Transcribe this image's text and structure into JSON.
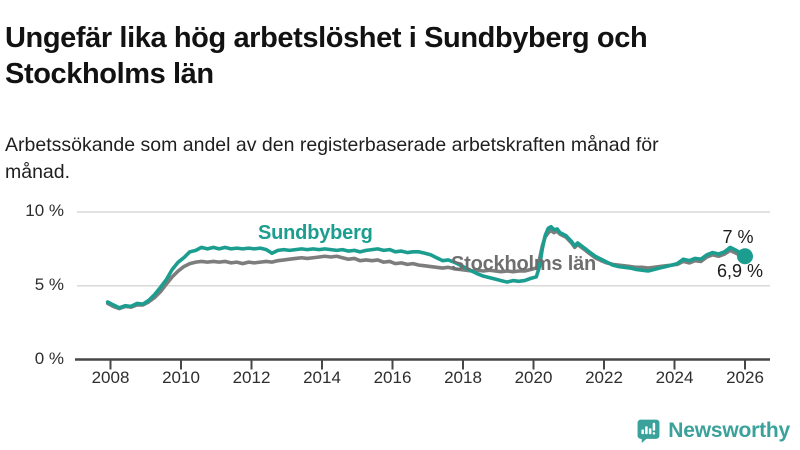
{
  "header": {
    "title": "Ungefär lika hög arbetslöshet i Sundbyberg och Stockholms län",
    "subtitle": "Arbetssökande som andel av den registerbaserade arbetskraften månad för månad."
  },
  "colors": {
    "sundbyberg": "#1b9e8f",
    "stockholm": "#7d7d7d",
    "stockholm_label": "#6e6e6e",
    "gridline": "#d9d9d9",
    "axis": "#474747",
    "logo": "#3aa29b"
  },
  "chart_data": {
    "type": "line",
    "title": "Ungefär lika hög arbetslöshet i Sundbyberg och Stockholms län",
    "unit": "%",
    "x_axis": {
      "ticks": [
        2008,
        2010,
        2012,
        2014,
        2016,
        2018,
        2020,
        2022,
        2024,
        2026
      ],
      "range": [
        2007.9,
        2026.7
      ]
    },
    "y_axis": {
      "ticks": [
        {
          "value": 0,
          "label": "0 %"
        },
        {
          "value": 5,
          "label": "5 %"
        },
        {
          "value": 10,
          "label": "10 %"
        }
      ],
      "range": [
        0,
        10.5
      ]
    },
    "legend_position": "inline-labels",
    "grid": true,
    "series": [
      {
        "name": "Stockholms län",
        "color": "#7d7d7d",
        "end_value_label": "6,9 %",
        "points": [
          [
            2007.92,
            3.8
          ],
          [
            2008.08,
            3.6
          ],
          [
            2008.25,
            3.45
          ],
          [
            2008.42,
            3.6
          ],
          [
            2008.58,
            3.55
          ],
          [
            2008.75,
            3.7
          ],
          [
            2008.92,
            3.7
          ],
          [
            2009.08,
            3.9
          ],
          [
            2009.25,
            4.2
          ],
          [
            2009.42,
            4.6
          ],
          [
            2009.58,
            5.1
          ],
          [
            2009.75,
            5.6
          ],
          [
            2009.92,
            6.0
          ],
          [
            2010.08,
            6.3
          ],
          [
            2010.25,
            6.5
          ],
          [
            2010.42,
            6.6
          ],
          [
            2010.58,
            6.65
          ],
          [
            2010.75,
            6.6
          ],
          [
            2010.92,
            6.65
          ],
          [
            2011.08,
            6.6
          ],
          [
            2011.25,
            6.65
          ],
          [
            2011.42,
            6.55
          ],
          [
            2011.58,
            6.6
          ],
          [
            2011.75,
            6.5
          ],
          [
            2011.92,
            6.6
          ],
          [
            2012.08,
            6.55
          ],
          [
            2012.25,
            6.6
          ],
          [
            2012.42,
            6.65
          ],
          [
            2012.58,
            6.6
          ],
          [
            2012.75,
            6.7
          ],
          [
            2012.92,
            6.75
          ],
          [
            2013.08,
            6.8
          ],
          [
            2013.25,
            6.85
          ],
          [
            2013.42,
            6.9
          ],
          [
            2013.58,
            6.85
          ],
          [
            2013.75,
            6.9
          ],
          [
            2013.92,
            6.95
          ],
          [
            2014.08,
            7.0
          ],
          [
            2014.25,
            6.95
          ],
          [
            2014.42,
            7.0
          ],
          [
            2014.58,
            6.9
          ],
          [
            2014.75,
            6.8
          ],
          [
            2014.92,
            6.85
          ],
          [
            2015.08,
            6.7
          ],
          [
            2015.25,
            6.75
          ],
          [
            2015.42,
            6.7
          ],
          [
            2015.58,
            6.75
          ],
          [
            2015.75,
            6.6
          ],
          [
            2015.92,
            6.65
          ],
          [
            2016.08,
            6.5
          ],
          [
            2016.25,
            6.55
          ],
          [
            2016.42,
            6.45
          ],
          [
            2016.58,
            6.5
          ],
          [
            2016.75,
            6.4
          ],
          [
            2016.92,
            6.35
          ],
          [
            2017.08,
            6.3
          ],
          [
            2017.25,
            6.25
          ],
          [
            2017.42,
            6.2
          ],
          [
            2017.58,
            6.25
          ],
          [
            2017.75,
            6.15
          ],
          [
            2017.92,
            6.1
          ],
          [
            2018.08,
            6.05
          ],
          [
            2018.25,
            6.0
          ],
          [
            2018.42,
            6.05
          ],
          [
            2018.58,
            6.0
          ],
          [
            2018.75,
            6.05
          ],
          [
            2018.92,
            6.0
          ],
          [
            2019.08,
            5.95
          ],
          [
            2019.25,
            6.0
          ],
          [
            2019.42,
            5.95
          ],
          [
            2019.58,
            6.0
          ],
          [
            2019.75,
            6.0
          ],
          [
            2019.92,
            6.1
          ],
          [
            2020.08,
            6.2
          ],
          [
            2020.17,
            6.8
          ],
          [
            2020.25,
            7.7
          ],
          [
            2020.33,
            8.3
          ],
          [
            2020.42,
            8.6
          ],
          [
            2020.5,
            8.75
          ],
          [
            2020.58,
            8.6
          ],
          [
            2020.67,
            8.7
          ],
          [
            2020.75,
            8.5
          ],
          [
            2020.92,
            8.3
          ],
          [
            2021.08,
            7.9
          ],
          [
            2021.17,
            7.6
          ],
          [
            2021.25,
            7.8
          ],
          [
            2021.42,
            7.5
          ],
          [
            2021.58,
            7.2
          ],
          [
            2021.75,
            6.9
          ],
          [
            2021.92,
            6.7
          ],
          [
            2022.08,
            6.55
          ],
          [
            2022.25,
            6.45
          ],
          [
            2022.42,
            6.4
          ],
          [
            2022.58,
            6.35
          ],
          [
            2022.75,
            6.3
          ],
          [
            2022.92,
            6.25
          ],
          [
            2023.08,
            6.25
          ],
          [
            2023.25,
            6.2
          ],
          [
            2023.42,
            6.25
          ],
          [
            2023.58,
            6.3
          ],
          [
            2023.75,
            6.35
          ],
          [
            2023.92,
            6.4
          ],
          [
            2024.08,
            6.45
          ],
          [
            2024.25,
            6.65
          ],
          [
            2024.42,
            6.55
          ],
          [
            2024.58,
            6.7
          ],
          [
            2024.75,
            6.65
          ],
          [
            2024.92,
            6.95
          ],
          [
            2025.08,
            7.1
          ],
          [
            2025.25,
            7.0
          ],
          [
            2025.42,
            7.15
          ],
          [
            2025.58,
            7.4
          ],
          [
            2025.75,
            7.2
          ],
          [
            2025.92,
            7.0
          ],
          [
            2026.0,
            6.9
          ]
        ]
      },
      {
        "name": "Sundbyberg",
        "color": "#1b9e8f",
        "end_value_label": "7 %",
        "points": [
          [
            2007.92,
            3.9
          ],
          [
            2008.08,
            3.7
          ],
          [
            2008.25,
            3.5
          ],
          [
            2008.42,
            3.65
          ],
          [
            2008.58,
            3.6
          ],
          [
            2008.75,
            3.8
          ],
          [
            2008.92,
            3.75
          ],
          [
            2009.08,
            4.0
          ],
          [
            2009.25,
            4.4
          ],
          [
            2009.42,
            4.9
          ],
          [
            2009.58,
            5.4
          ],
          [
            2009.75,
            6.1
          ],
          [
            2009.92,
            6.6
          ],
          [
            2010.08,
            6.9
          ],
          [
            2010.25,
            7.3
          ],
          [
            2010.42,
            7.4
          ],
          [
            2010.58,
            7.6
          ],
          [
            2010.75,
            7.5
          ],
          [
            2010.92,
            7.6
          ],
          [
            2011.08,
            7.5
          ],
          [
            2011.25,
            7.6
          ],
          [
            2011.42,
            7.5
          ],
          [
            2011.58,
            7.55
          ],
          [
            2011.75,
            7.5
          ],
          [
            2011.92,
            7.55
          ],
          [
            2012.08,
            7.5
          ],
          [
            2012.25,
            7.55
          ],
          [
            2012.42,
            7.45
          ],
          [
            2012.58,
            7.2
          ],
          [
            2012.75,
            7.4
          ],
          [
            2012.92,
            7.45
          ],
          [
            2013.08,
            7.4
          ],
          [
            2013.25,
            7.45
          ],
          [
            2013.42,
            7.5
          ],
          [
            2013.58,
            7.45
          ],
          [
            2013.75,
            7.5
          ],
          [
            2013.92,
            7.45
          ],
          [
            2014.08,
            7.5
          ],
          [
            2014.25,
            7.45
          ],
          [
            2014.42,
            7.4
          ],
          [
            2014.58,
            7.45
          ],
          [
            2014.75,
            7.35
          ],
          [
            2014.92,
            7.4
          ],
          [
            2015.08,
            7.3
          ],
          [
            2015.25,
            7.4
          ],
          [
            2015.42,
            7.45
          ],
          [
            2015.58,
            7.5
          ],
          [
            2015.75,
            7.4
          ],
          [
            2015.92,
            7.45
          ],
          [
            2016.08,
            7.3
          ],
          [
            2016.25,
            7.35
          ],
          [
            2016.42,
            7.25
          ],
          [
            2016.58,
            7.3
          ],
          [
            2016.75,
            7.3
          ],
          [
            2016.92,
            7.2
          ],
          [
            2017.08,
            7.1
          ],
          [
            2017.25,
            6.9
          ],
          [
            2017.42,
            6.7
          ],
          [
            2017.58,
            6.75
          ],
          [
            2017.75,
            6.6
          ],
          [
            2017.92,
            6.4
          ],
          [
            2018.08,
            6.2
          ],
          [
            2018.25,
            6.0
          ],
          [
            2018.42,
            5.8
          ],
          [
            2018.58,
            5.65
          ],
          [
            2018.75,
            5.55
          ],
          [
            2018.92,
            5.45
          ],
          [
            2019.08,
            5.35
          ],
          [
            2019.25,
            5.25
          ],
          [
            2019.42,
            5.35
          ],
          [
            2019.58,
            5.3
          ],
          [
            2019.75,
            5.35
          ],
          [
            2019.92,
            5.5
          ],
          [
            2020.08,
            5.6
          ],
          [
            2020.17,
            6.3
          ],
          [
            2020.25,
            7.5
          ],
          [
            2020.33,
            8.4
          ],
          [
            2020.42,
            8.9
          ],
          [
            2020.5,
            9.0
          ],
          [
            2020.58,
            8.8
          ],
          [
            2020.67,
            8.85
          ],
          [
            2020.75,
            8.6
          ],
          [
            2020.92,
            8.4
          ],
          [
            2021.08,
            8.0
          ],
          [
            2021.17,
            7.7
          ],
          [
            2021.25,
            7.9
          ],
          [
            2021.42,
            7.6
          ],
          [
            2021.58,
            7.3
          ],
          [
            2021.75,
            7.0
          ],
          [
            2021.92,
            6.8
          ],
          [
            2022.08,
            6.6
          ],
          [
            2022.25,
            6.4
          ],
          [
            2022.42,
            6.3
          ],
          [
            2022.58,
            6.25
          ],
          [
            2022.75,
            6.2
          ],
          [
            2022.92,
            6.1
          ],
          [
            2023.08,
            6.05
          ],
          [
            2023.25,
            6.0
          ],
          [
            2023.42,
            6.1
          ],
          [
            2023.58,
            6.2
          ],
          [
            2023.75,
            6.3
          ],
          [
            2023.92,
            6.4
          ],
          [
            2024.08,
            6.5
          ],
          [
            2024.25,
            6.8
          ],
          [
            2024.42,
            6.7
          ],
          [
            2024.58,
            6.85
          ],
          [
            2024.75,
            6.8
          ],
          [
            2024.92,
            7.1
          ],
          [
            2025.08,
            7.25
          ],
          [
            2025.25,
            7.15
          ],
          [
            2025.42,
            7.3
          ],
          [
            2025.58,
            7.6
          ],
          [
            2025.75,
            7.4
          ],
          [
            2025.92,
            7.15
          ],
          [
            2026.0,
            7.0
          ]
        ]
      }
    ],
    "end_dot": {
      "series": "Sundbyberg",
      "x": 2026.0,
      "y": 7.0
    },
    "annotations": {
      "series_label_sundbyberg": "Sundbyberg",
      "series_label_stockholm": "Stockholms län",
      "end_value_top": "7 %",
      "end_value_bottom": "6,9 %"
    }
  },
  "logo": {
    "text": "Newsworthy",
    "icon": "newsworthy-bars-speech-bubble-icon"
  }
}
